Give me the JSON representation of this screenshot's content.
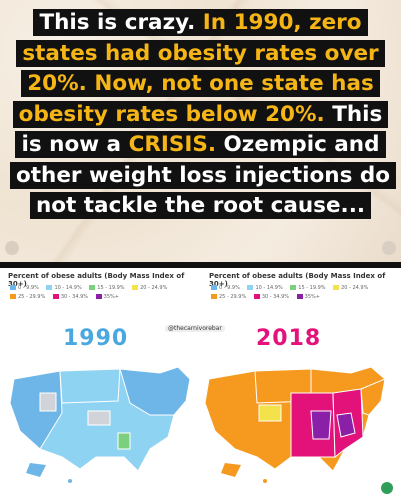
{
  "caption": {
    "parts": [
      {
        "text": "This is crazy. ",
        "style": "white"
      },
      {
        "text": "In 1990, zero states had obesity rates over 20%. Now, not one state has obesity rates below 20%.",
        "style": "highlight"
      },
      {
        "text": " This is now a ",
        "style": "white"
      },
      {
        "text": "CRISIS.",
        "style": "highlight"
      },
      {
        "text": " Ozempic and other weight loss injections do not tackle the root cause...",
        "style": "white"
      }
    ]
  },
  "colors": {
    "highlight": "#f5b516",
    "caption_bg": "#111111"
  },
  "watermark": "@thecarnivorebar",
  "maps": [
    {
      "title": "Percent of obese adults (Body Mass Index of 30+)",
      "legend": [
        "0 - 9.9%",
        "10 - 14.9%",
        "15 - 19.9%",
        "20 - 24.9%",
        "25 - 29.9%",
        "30 - 34.9%",
        "35%+"
      ],
      "legend_colors": [
        "#6fb6e8",
        "#8fd3f2",
        "#7ccf7c",
        "#f3e24a",
        "#f59a1f",
        "#e2127a",
        "#8a1fa8"
      ],
      "year": "1990"
    },
    {
      "title": "Percent of obese adults (Body Mass Index of 30+)",
      "legend": [
        "0 - 9.9%",
        "10 - 14.9%",
        "15 - 19.9%",
        "20 - 24.9%",
        "25 - 29.9%",
        "30 - 34.9%",
        "35%+"
      ],
      "legend_colors": [
        "#6fb6e8",
        "#8fd3f2",
        "#7ccf7c",
        "#f3e24a",
        "#f59a1f",
        "#e2127a",
        "#8a1fa8"
      ],
      "year": "2018"
    }
  ]
}
